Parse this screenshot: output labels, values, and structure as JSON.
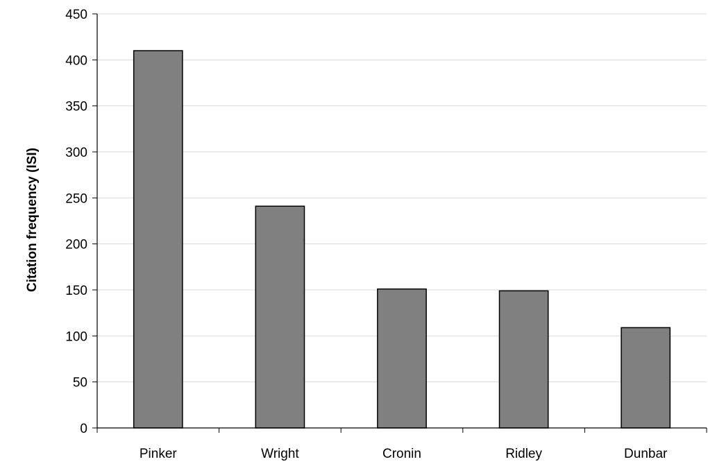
{
  "chart_data": {
    "type": "bar",
    "categories": [
      "Pinker",
      "Wright",
      "Cronin",
      "Ridley",
      "Dunbar"
    ],
    "values": [
      410,
      241,
      151,
      149,
      109
    ],
    "title": "",
    "xlabel": "",
    "ylabel": "Citation frequency (ISI)",
    "ylim": [
      0,
      450
    ],
    "yticks": [
      0,
      50,
      100,
      150,
      200,
      250,
      300,
      350,
      400,
      450
    ],
    "grid": "horizontal",
    "legend": "none",
    "colors": {
      "bar_fill": "#808080",
      "bar_stroke": "#000000",
      "grid": "#d9d9d9",
      "axis": "#000000"
    }
  }
}
